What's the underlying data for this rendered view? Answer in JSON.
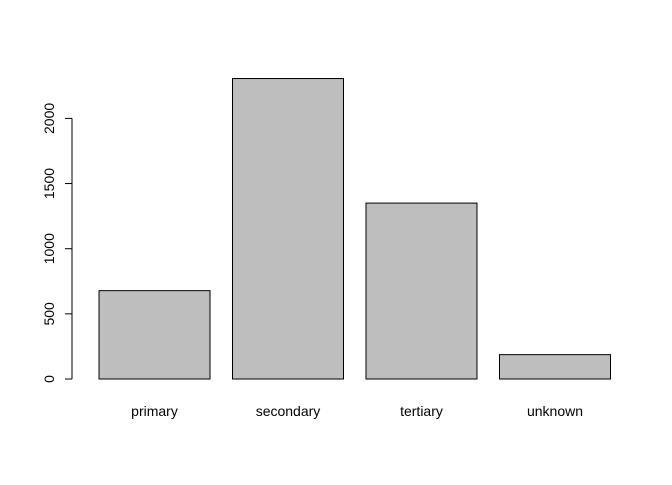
{
  "chart_data": {
    "type": "bar",
    "categories": [
      "primary",
      "secondary",
      "tertiary",
      "unknown"
    ],
    "values": [
      678,
      2306,
      1350,
      187
    ],
    "yticks": [
      0,
      500,
      1000,
      1500,
      2000
    ],
    "ylim": [
      0,
      2306
    ],
    "title": "",
    "xlabel": "",
    "ylabel": "",
    "grid": false,
    "bar_fill": "#bebebe",
    "bar_stroke": "#000000"
  }
}
